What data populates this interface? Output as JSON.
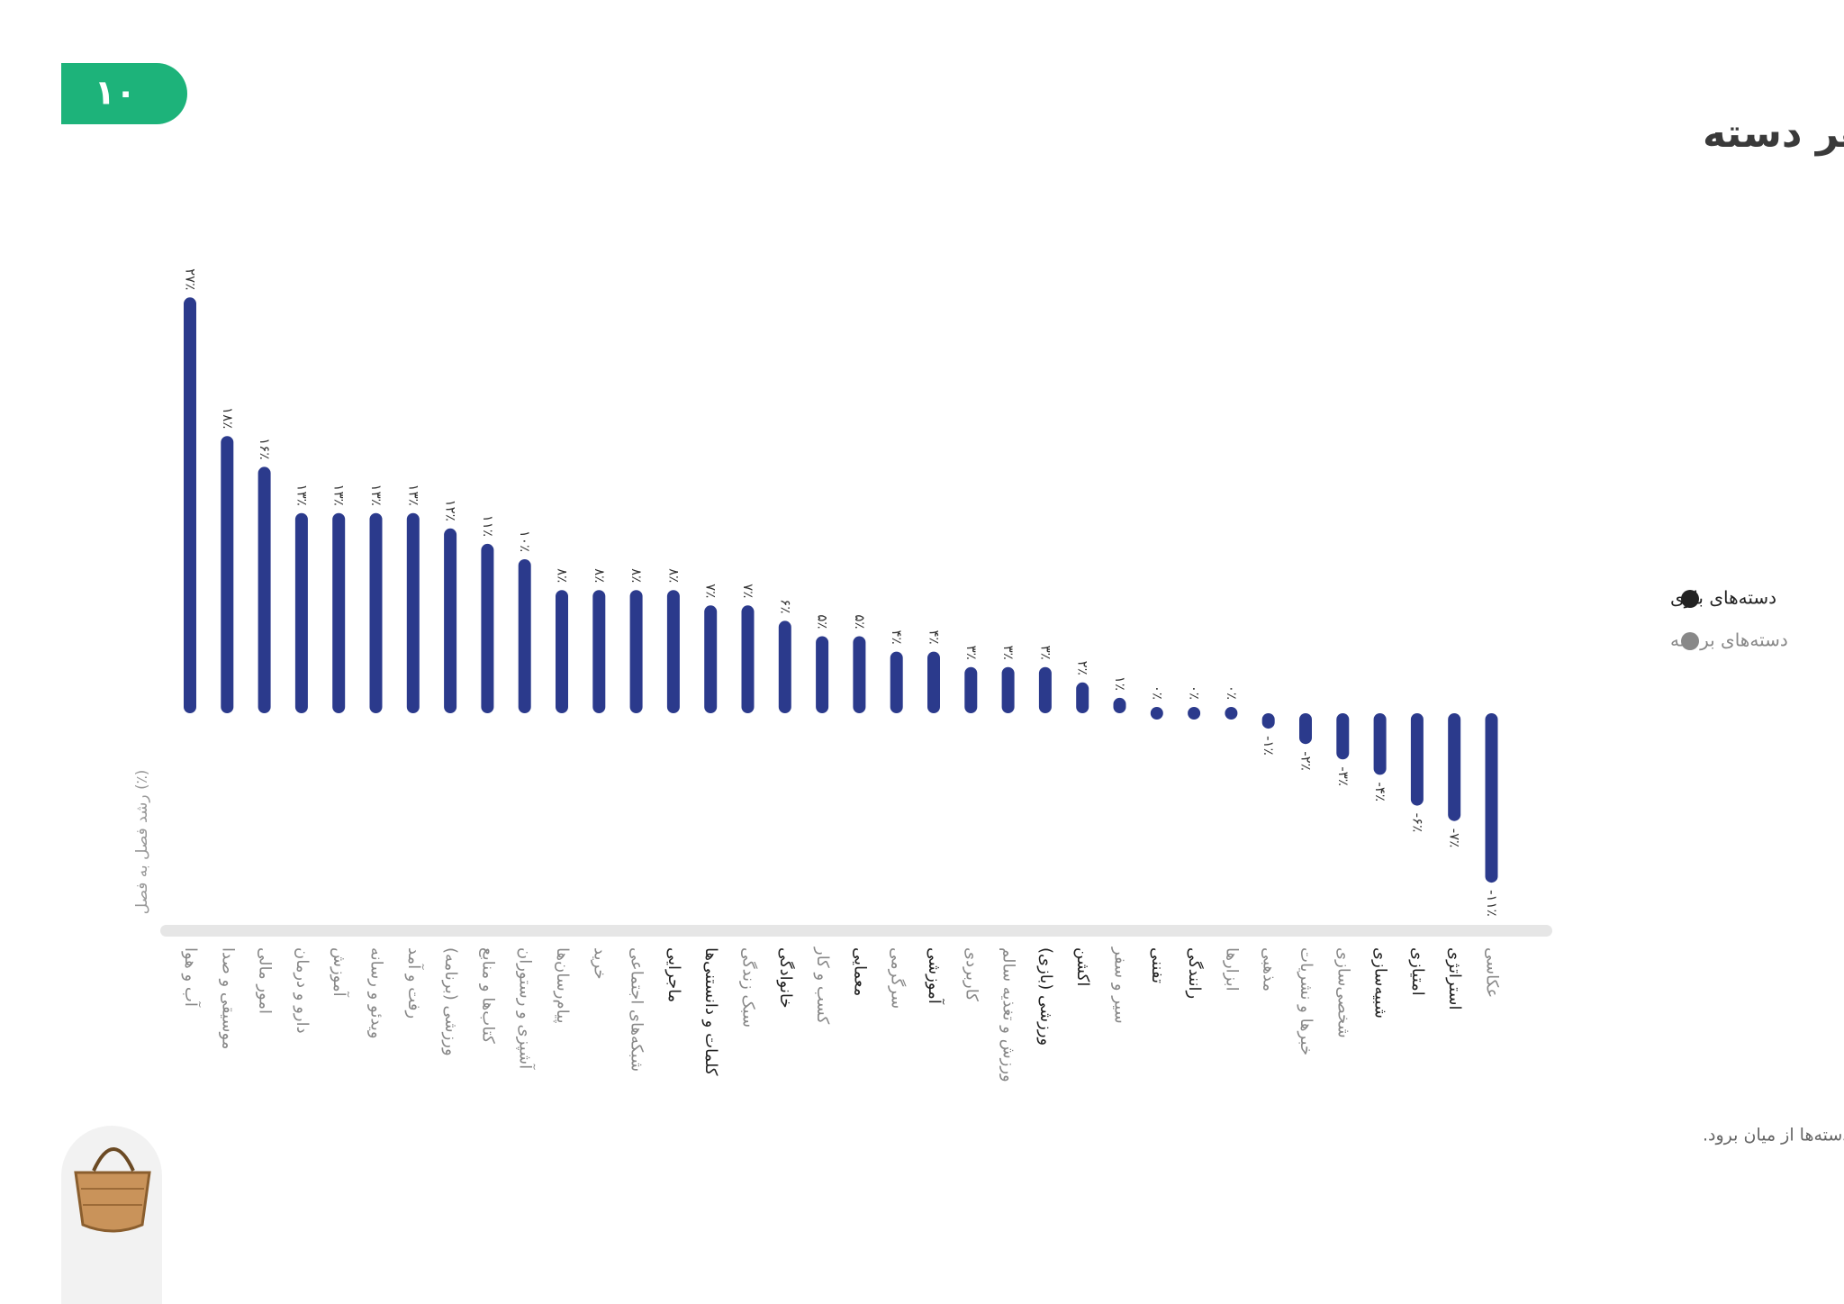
{
  "page_number": "۱۰",
  "footnote": "عدد نصب فعال در این نمودار با عدد نصب فعال تعدیل شده است تا تأثیر افزایش کاربران بازار روی نصب دسته‌ها از میان برود.",
  "chart_data": {
    "type": "bar",
    "title": "رشد نصب فعال برنامه‌ها در هر دسته",
    "y_label": "رشد فصل به فصل (٪)",
    "color": "#2b3a8c",
    "categories": [
      "آب و هوا",
      "موسیقی و صدا",
      "امور مالی",
      "دارو و درمان",
      "آموزش",
      "ویدئو و رسانه",
      "رفت و آمد",
      "ورزشی (برنامه)",
      "کتاب‌ها و منابع",
      "آشپزی و رستوران",
      "پیام‌رسان‌ها",
      "خرید",
      "شبکه‌های اجتماعی",
      "ماجرایی",
      "کلمات و دانستنی‌ها",
      "سبک زندگی",
      "خانوادگی",
      "کسب و کار",
      "معمایی",
      "سرگرمی",
      "آموزشی",
      "کاربردی",
      "ورزش و تغذیه سالم",
      "ورزشی (بازی)",
      "اکشن",
      "سیر و سفر",
      "تفننی",
      "رانندگی",
      "ابزارها",
      "مذهبی",
      "خبرها و نشریات",
      "شخصی‌سازی",
      "شبیه‌سازی",
      "امتیازی",
      "استراتژی",
      "عکاسی"
    ],
    "category_colors": [
      "#888888",
      "#888888",
      "#888888",
      "#888888",
      "#888888",
      "#888888",
      "#888888",
      "#888888",
      "#888888",
      "#888888",
      "#888888",
      "#888888",
      "#888888",
      "#222222",
      "#222222",
      "#888888",
      "#222222",
      "#888888",
      "#222222",
      "#888888",
      "#222222",
      "#888888",
      "#888888",
      "#222222",
      "#222222",
      "#888888",
      "#222222",
      "#222222",
      "#888888",
      "#888888",
      "#888888",
      "#888888",
      "#222222",
      "#222222",
      "#222222",
      "#888888"
    ],
    "values": [
      27,
      18,
      16,
      13,
      13,
      13,
      13,
      12,
      11,
      10,
      8,
      8,
      8,
      8,
      7,
      7,
      6,
      5,
      5,
      4,
      4,
      3,
      3,
      3,
      2,
      1,
      0,
      0,
      0,
      -1,
      -2,
      -3,
      -4,
      -6,
      -7,
      -11
    ],
    "value_labels": [
      "۲۷٪",
      "۱۸٪",
      "۱۶٪",
      "۱۳٪",
      "۱۳٪",
      "۱۳٪",
      "۱۳٪",
      "۱۲٪",
      "۱۱٪",
      "۱۰٪",
      "۸٪",
      "۸٪",
      "۸٪",
      "۸٪",
      "۷٪",
      "۷٪",
      "۶٪",
      "۵٪",
      "۵٪",
      "۴٪",
      "۴٪",
      "۳٪",
      "۳٪",
      "۳٪",
      "۲٪",
      "۱٪",
      "۰٪",
      "۰٪",
      "۰٪",
      "-۱٪",
      "-۲٪",
      "-۳٪",
      "-۴٪",
      "-۶٪",
      "-۷٪",
      "-۱۱٪"
    ],
    "legend": [
      {
        "name": "دسته‌های بازی",
        "color": "#222222"
      },
      {
        "name": "دسته‌های برنامه",
        "color": "#888888"
      }
    ]
  }
}
